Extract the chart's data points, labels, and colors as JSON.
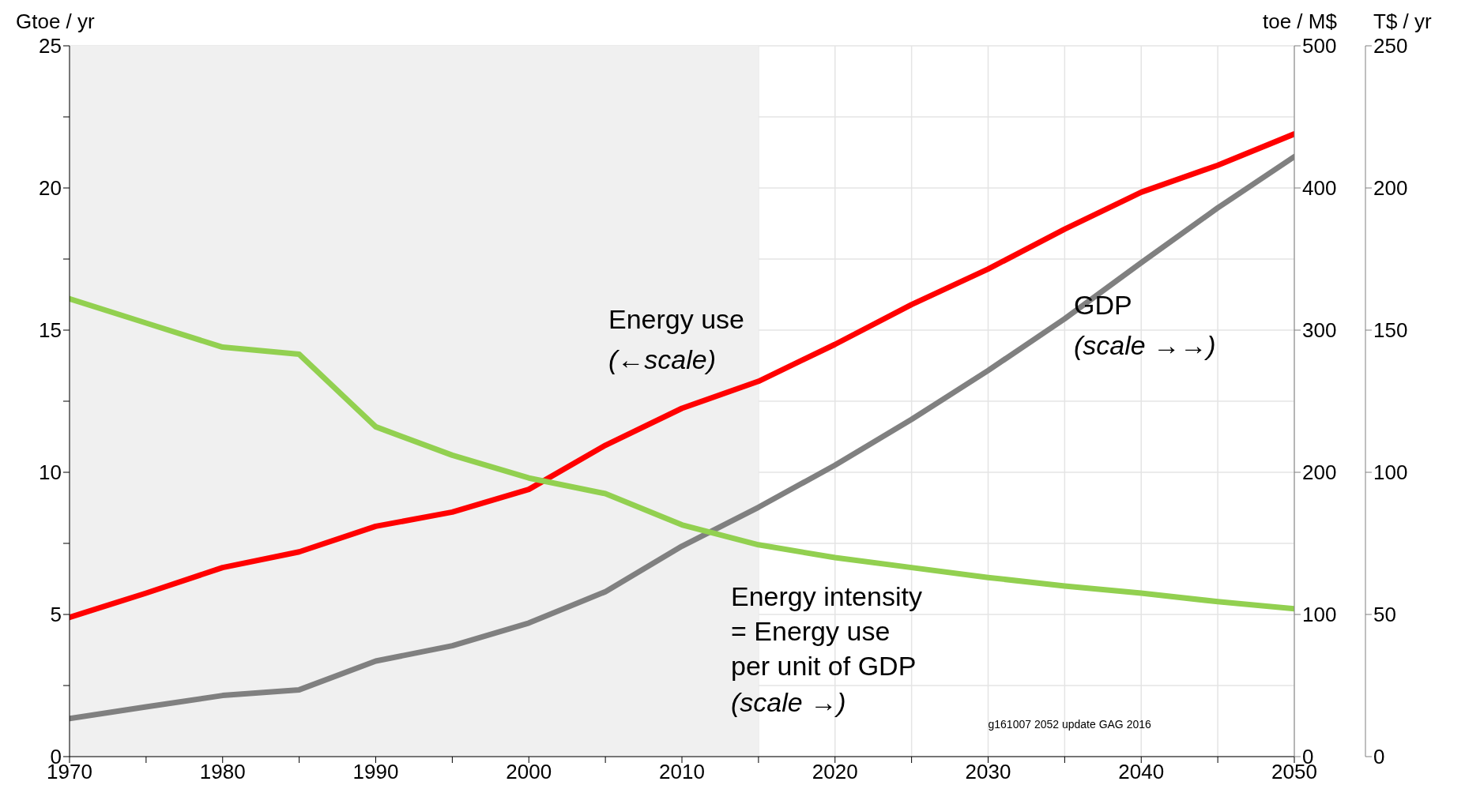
{
  "chart_data": {
    "type": "line",
    "ylabel": "Gtoe / yr",
    "y2label": "toe / M$",
    "y3label": "T$ / yr",
    "x": [
      1970,
      1975,
      1980,
      1985,
      1990,
      1995,
      2000,
      2005,
      2010,
      2015,
      2020,
      2025,
      2030,
      2035,
      2040,
      2045,
      2050
    ],
    "series": [
      {
        "name": "Energy use",
        "color": "#ff0000",
        "values": [
          4.9,
          5.75,
          6.65,
          7.2,
          8.1,
          8.6,
          9.4,
          10.95,
          12.25,
          13.2,
          14.5,
          15.9,
          17.15,
          18.55,
          19.85,
          20.8,
          21.9
        ]
      },
      {
        "name": "GDP",
        "color": "#808080",
        "axis": "y3",
        "values": [
          13.4,
          17.5,
          21.5,
          23.5,
          33.6,
          39,
          47,
          58,
          74,
          87.7,
          102.5,
          118.6,
          135.8,
          154,
          173.7,
          193,
          211
        ]
      },
      {
        "name": "Energy intensity\n= Energy use\nper unit of GDP",
        "color": "#92d050",
        "axis": "y2",
        "values": [
          322,
          305,
          288,
          283,
          232,
          212,
          196,
          185,
          163,
          149,
          140,
          133,
          126,
          120,
          115,
          109,
          104
        ]
      }
    ],
    "xlim": [
      1970,
      2050
    ],
    "xticks": [
      1970,
      {
        "value": 1975,
        "label": null
      },
      1980,
      {
        "value": 1985,
        "label": null
      },
      1990,
      {
        "value": 1995,
        "label": null
      },
      2000,
      {
        "value": 2005,
        "label": null
      },
      2010,
      {
        "value": 2015,
        "label": null
      },
      2020,
      {
        "value": 2025,
        "label": null
      },
      2030,
      {
        "value": 2035,
        "label": null
      },
      2040,
      {
        "value": 2045,
        "label": null
      },
      2050
    ],
    "ylim": [
      0,
      25
    ],
    "yticks": [
      0,
      {
        "value": 2.5,
        "label": null
      },
      5,
      {
        "value": 7.5,
        "label": null
      },
      10,
      {
        "value": 12.5,
        "label": null
      },
      15,
      {
        "value": 17.5,
        "label": null
      },
      20,
      {
        "value": 22.5,
        "label": null
      },
      25
    ],
    "y2lim": [
      0,
      500
    ],
    "y2ticks": [
      0,
      100,
      200,
      300,
      400,
      500
    ],
    "y3lim": [
      0,
      250
    ],
    "y3ticks": [
      0,
      50,
      100,
      150,
      200,
      250
    ],
    "bands": [
      {
        "axis": "x",
        "from": 1970,
        "to": 2015,
        "color": "#f0f0f0"
      }
    ],
    "grid": true,
    "legend": false,
    "marker": "none",
    "line_style": "solid",
    "annotations": [
      "(←scale)",
      "(scale →→)",
      "(scale →)",
      "g161007 2052 update GAG 2016"
    ]
  }
}
